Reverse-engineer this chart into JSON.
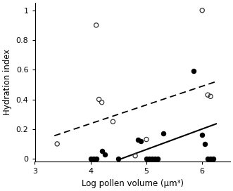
{
  "open_circles": [
    [
      3.4,
      0.1
    ],
    [
      4.1,
      0.9
    ],
    [
      4.15,
      0.4
    ],
    [
      4.2,
      0.38
    ],
    [
      4.4,
      0.25
    ],
    [
      4.8,
      0.02
    ],
    [
      5.0,
      0.13
    ],
    [
      6.0,
      1.0
    ],
    [
      6.1,
      0.43
    ],
    [
      6.15,
      0.42
    ]
  ],
  "filled_circles": [
    [
      4.0,
      0.0
    ],
    [
      4.05,
      0.0
    ],
    [
      4.1,
      0.0
    ],
    [
      4.2,
      0.05
    ],
    [
      4.25,
      0.03
    ],
    [
      4.5,
      0.0
    ],
    [
      4.85,
      0.13
    ],
    [
      4.9,
      0.12
    ],
    [
      5.0,
      0.0
    ],
    [
      5.05,
      0.0
    ],
    [
      5.1,
      0.0
    ],
    [
      5.15,
      0.0
    ],
    [
      5.2,
      0.0
    ],
    [
      5.3,
      0.17
    ],
    [
      5.85,
      0.59
    ],
    [
      6.0,
      0.16
    ],
    [
      6.05,
      0.1
    ],
    [
      6.1,
      0.0
    ],
    [
      6.15,
      0.0
    ],
    [
      6.2,
      0.0
    ]
  ],
  "dashed_line": {
    "x0": 3.35,
    "x1": 6.25,
    "y0": 0.155,
    "y1": 0.52
  },
  "solid_line": {
    "x0": 4.55,
    "x1": 6.25,
    "y0": 0.0,
    "y1": 0.235
  },
  "xlim": [
    3.0,
    6.5
  ],
  "ylim": [
    -0.02,
    1.05
  ],
  "xticks": [
    3,
    4,
    5,
    6
  ],
  "yticks": [
    0,
    0.2,
    0.4,
    0.6,
    0.8,
    1
  ],
  "ytick_labels": [
    "0",
    "0.2",
    "0.4",
    "0.6",
    "0.8",
    "1"
  ],
  "xlabel": "Log pollen volume (μm³)",
  "ylabel": "Hydration index",
  "marker_size": 20,
  "open_edge_color": "#333333",
  "filled_color": "#000000",
  "line_color": "#000000",
  "bg_color": "#ffffff"
}
